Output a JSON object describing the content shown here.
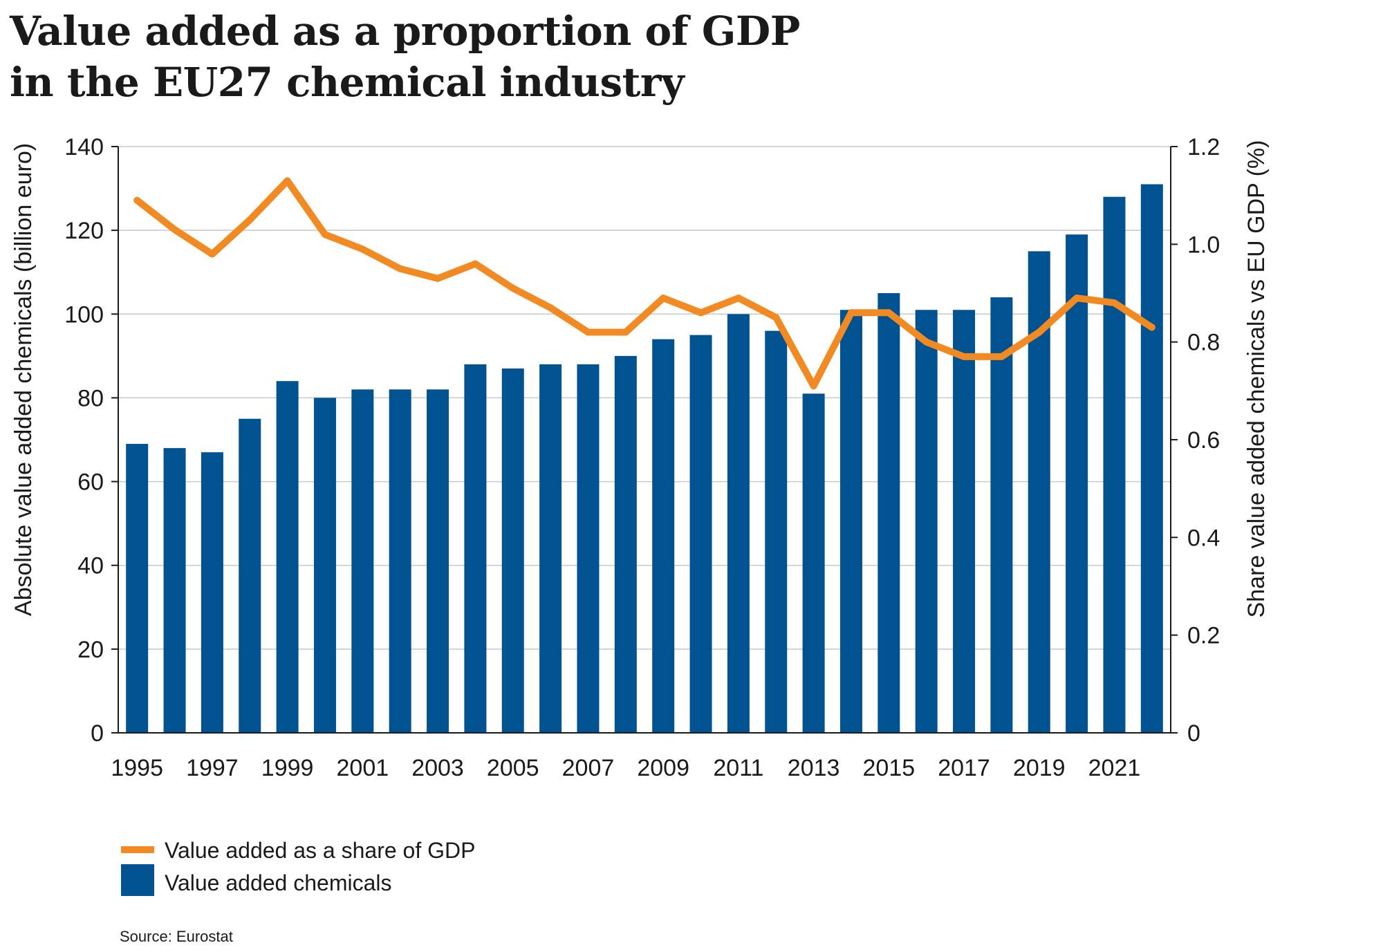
{
  "title_lines": [
    "Value added as a proportion of GDP",
    "in the EU27 chemical industry"
  ],
  "colors": {
    "bar": "#005291",
    "line": "#f28a24",
    "grid": "#c8c8c8",
    "axis": "#1a1a1a"
  },
  "legend": {
    "line_label": "Value added as a share of GDP",
    "bar_label": "Value added chemicals"
  },
  "source": "Source: Eurostat",
  "chart_data": {
    "type": "bar+line",
    "title": "Value added as a proportion of GDP in the EU27 chemical industry",
    "x": [
      1995,
      1996,
      1997,
      1998,
      1999,
      2000,
      2001,
      2002,
      2003,
      2004,
      2005,
      2006,
      2007,
      2008,
      2009,
      2010,
      2011,
      2012,
      2013,
      2014,
      2015,
      2016,
      2017,
      2018,
      2019,
      2020,
      2021,
      2022
    ],
    "x_tick_labels": [
      "1995",
      "1997",
      "1999",
      "2001",
      "2003",
      "2005",
      "2007",
      "2009",
      "2011",
      "2013",
      "2015",
      "2017",
      "2019",
      "2021"
    ],
    "y_left_label": "Absolute value added chemicals (billion euro)",
    "y_left_lim": [
      0,
      140
    ],
    "y_left_ticks": [
      "0",
      "20",
      "40",
      "60",
      "80",
      "100",
      "120",
      "140"
    ],
    "y_right_label": "Share value added chemicals vs EU GDP (%)",
    "y_right_lim": [
      0,
      1.2
    ],
    "y_right_ticks": [
      "0",
      "0.2",
      "0.4",
      "0.6",
      "0.8",
      "1.0",
      "1.2"
    ],
    "grid": true,
    "legend_position": "bottom-left",
    "series": [
      {
        "name": "Value added chemicals",
        "type": "bar",
        "axis": "left",
        "values": [
          69,
          68,
          67,
          75,
          84,
          80,
          82,
          82,
          82,
          88,
          87,
          88,
          88,
          90,
          94,
          95,
          100,
          96,
          81,
          101,
          105,
          101,
          101,
          104,
          115,
          119,
          128,
          131
        ]
      },
      {
        "name": "Value added as a share of GDP",
        "type": "line",
        "axis": "right",
        "values": [
          1.09,
          1.03,
          0.98,
          1.05,
          1.13,
          1.02,
          0.99,
          0.95,
          0.93,
          0.96,
          0.91,
          0.87,
          0.82,
          0.82,
          0.89,
          0.86,
          0.89,
          0.85,
          0.71,
          0.86,
          0.86,
          0.8,
          0.77,
          0.77,
          0.82,
          0.89,
          0.88,
          0.83
        ]
      }
    ]
  }
}
